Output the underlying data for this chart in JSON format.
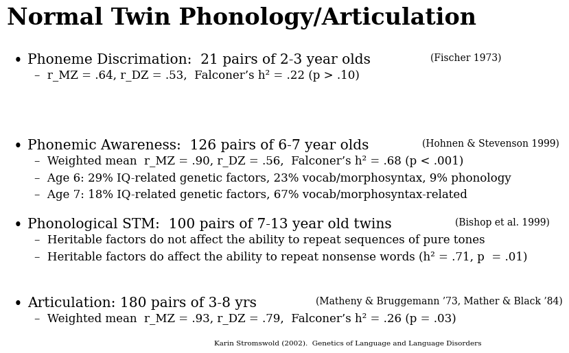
{
  "title": "Normal Twin Phonology/Articulation",
  "background_color": "#ffffff",
  "title_fontsize": 24,
  "title_fontweight": "bold",
  "title_font": "DejaVu Serif",
  "text_color": "#000000",
  "main_fontsize": 14.5,
  "cite_fontsize": 10,
  "sub_fontsize": 12,
  "footer_fontsize": 7.5,
  "content": [
    {
      "main_text": "Phoneme Discrimation:  21 pairs of 2-3 year olds ",
      "cite_text": "(Fischer 1973)",
      "sub_bullets": [
        "–  r_MZ = .64, r_DZ = .53,  Falconer’s h² = .22 (p > .10)"
      ]
    },
    {
      "main_text": "Phonemic Awareness:  126 pairs of 6-7 year olds ",
      "cite_text": "(Hohnen & Stevenson 1999)",
      "sub_bullets": [
        "–  Weighted mean  r_MZ = .90, r_DZ = .56,  Falconer’s h² = .68 (p < .001)",
        "–  Age 6: 29% IQ-related genetic factors, 23% vocab/morphosyntax, 9% phonology",
        "–  Age 7: 18% IQ-related genetic factors, 67% vocab/morphosyntax-related"
      ]
    },
    {
      "main_text": "Phonological STM:  100 pairs of 7-13 year old twins ",
      "cite_text": "(Bishop et al. 1999)",
      "sub_bullets": [
        "–  Heritable factors do not affect the ability to repeat sequences of pure tones",
        "–  Heritable factors do affect the ability to repeat nonsense words (h² = .71, p  = .01)"
      ]
    },
    {
      "main_text": "Articulation: 180 pairs of 3-8 yrs ",
      "cite_text": "(Matheny & Bruggemann ’73, Mather & Black ’84)",
      "sub_bullets": [
        "–  Weighted mean  r_MZ = .93, r_DZ = .79,  Falconer’s h² = .26 (p = .03)"
      ]
    }
  ],
  "footer": "Karin Stromswold (2002).  Genetics of Language and Language Disorders"
}
